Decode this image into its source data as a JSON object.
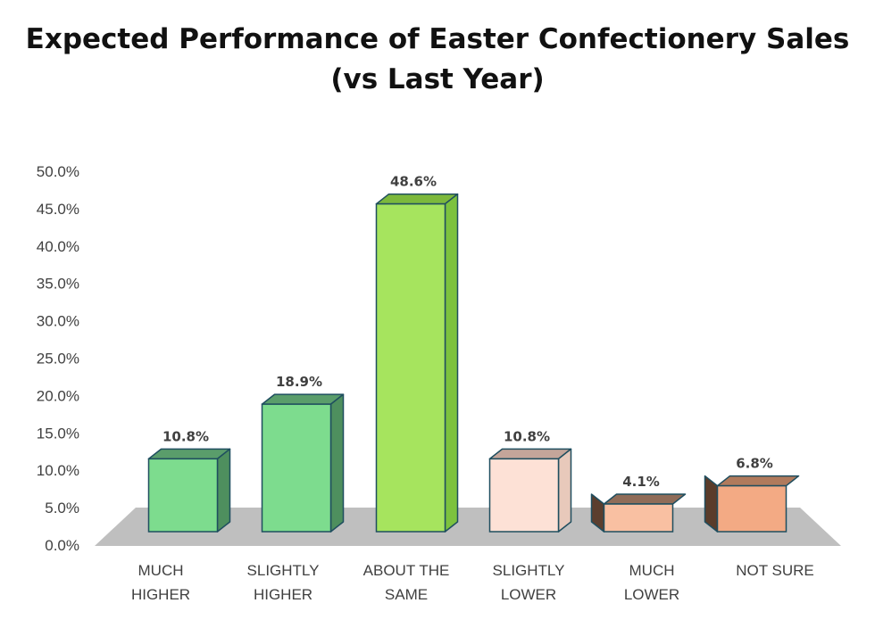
{
  "chart_data": {
    "type": "bar",
    "title_lines": [
      "Expected Performance of Easter Confectionery Sales",
      "(vs Last Year)"
    ],
    "categories": [
      [
        "MUCH",
        "HIGHER"
      ],
      [
        "SLIGHTLY",
        "HIGHER"
      ],
      [
        "ABOUT THE",
        "SAME"
      ],
      [
        "SLIGHTLY",
        "LOWER"
      ],
      [
        "MUCH",
        "LOWER"
      ],
      [
        "NOT SURE"
      ]
    ],
    "values": [
      10.8,
      18.9,
      48.6,
      10.8,
      4.1,
      6.8
    ],
    "value_labels": [
      "10.8%",
      "18.9%",
      "48.6%",
      "10.8%",
      "4.1%",
      "6.8%"
    ],
    "yticks": [
      "0.0%",
      "5.0%",
      "10.0%",
      "15.0%",
      "20.0%",
      "25.0%",
      "30.0%",
      "35.0%",
      "40.0%",
      "45.0%",
      "50.0%"
    ],
    "ylim": [
      0,
      50
    ],
    "xlabel": "",
    "ylabel": "",
    "colors": {
      "front": [
        "#7ddc8e",
        "#7ddc8e",
        "#a6e45e",
        "#fde1d6",
        "#f9c0a2",
        "#f3aa84"
      ],
      "top": [
        "#5a9d6b",
        "#5a9d6b",
        "#7cb83c",
        "#c4a59a",
        "#8f6c58",
        "#b07a5c"
      ],
      "side": [
        "#4e8f5e",
        "#4e8f5e",
        "#7cc23e",
        "#e8c9bb",
        "#5b3e2e",
        "#5a3c2a"
      ],
      "outline": "#1f4e5f",
      "floor": "#bfbfbf"
    }
  }
}
